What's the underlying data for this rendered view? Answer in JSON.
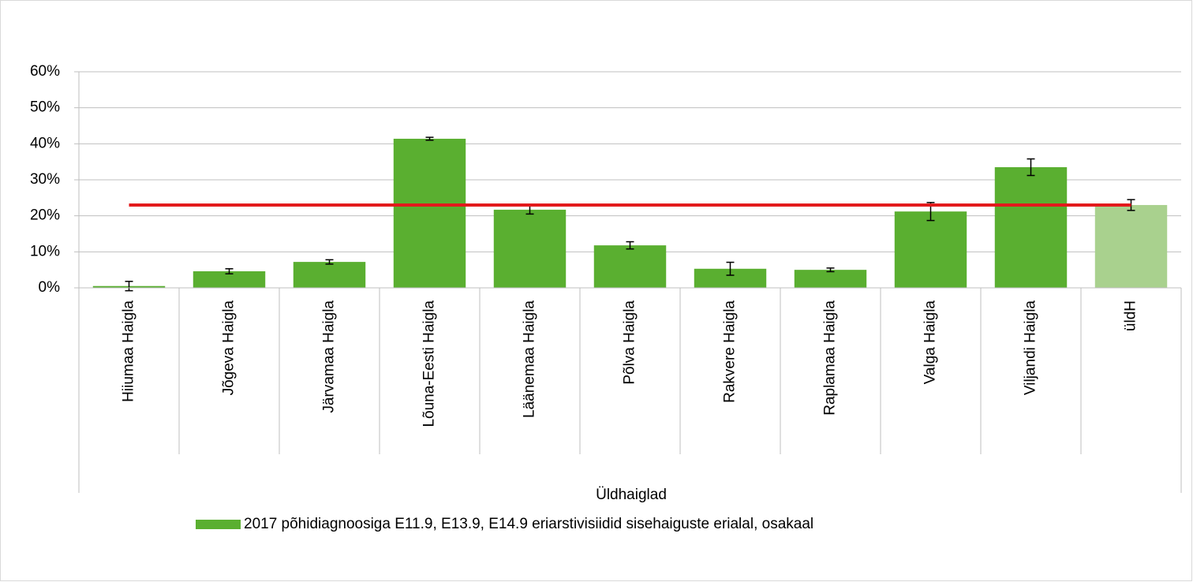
{
  "chart_data": {
    "type": "bar",
    "categories": [
      "Hiiumaa Haigla",
      "Jõgeva Haigla",
      "Järvamaa Haigla",
      "Lõuna-Eesti Haigla",
      "Läänemaa Haigla",
      "Põlva Haigla",
      "Rakvere Haigla",
      "Raplamaa Haigla",
      "Valga Haigla",
      "Viljandi Haigla",
      "üldH"
    ],
    "group_label": "Üldhaiglad",
    "series": [
      {
        "name": "2017 põhidiagnoosiga E11.9, E13.9, E14.9 eriarstivisiidid sisehaiguste erialal, osakaal",
        "color": "#5aaf30",
        "colors": [
          "#5aaf30",
          "#5aaf30",
          "#5aaf30",
          "#5aaf30",
          "#5aaf30",
          "#5aaf30",
          "#5aaf30",
          "#5aaf30",
          "#5aaf30",
          "#5aaf30",
          "#a9d18e"
        ],
        "values": [
          0.5,
          4.6,
          7.2,
          41.4,
          21.7,
          11.8,
          5.3,
          5.0,
          21.2,
          33.5,
          23.0
        ],
        "errors": [
          1.3,
          0.7,
          0.6,
          0.4,
          1.2,
          1.0,
          1.8,
          0.5,
          2.5,
          2.3,
          1.5
        ]
      }
    ],
    "reference_line": {
      "value": 23.0,
      "color": "#e31a1c"
    },
    "ylim": [
      0,
      60
    ],
    "yticks": [
      {
        "value": 0,
        "label": "0%"
      },
      {
        "value": 10,
        "label": "10%"
      },
      {
        "value": 20,
        "label": "20%"
      },
      {
        "value": 30,
        "label": "30%"
      },
      {
        "value": 40,
        "label": "40%"
      },
      {
        "value": 50,
        "label": "50%"
      },
      {
        "value": 60,
        "label": "60%"
      }
    ],
    "grid": true
  }
}
